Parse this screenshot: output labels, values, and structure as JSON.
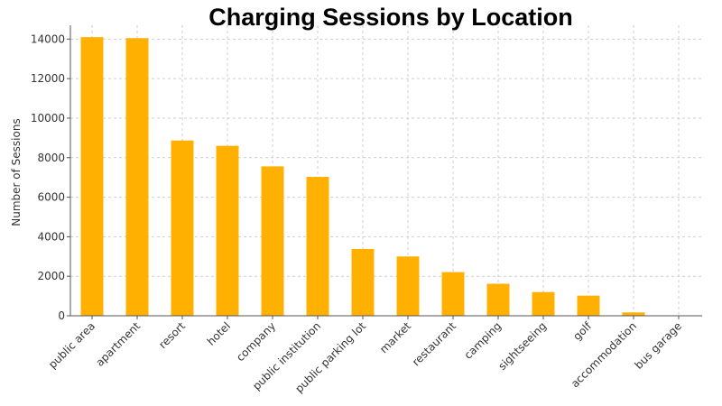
{
  "chart_data": {
    "type": "bar",
    "title": "Charging Sessions by Location",
    "xlabel": "",
    "ylabel": "Number of Sessions",
    "categories": [
      "public area",
      "apartment",
      "resort",
      "hotel",
      "company",
      "public institution",
      "public parking lot",
      "market",
      "restaurant",
      "camping",
      "sightseeing",
      "golf",
      "accommodation",
      "bus garage"
    ],
    "values": [
      14100,
      14050,
      8870,
      8600,
      7560,
      7030,
      3380,
      3000,
      2210,
      1620,
      1200,
      1020,
      170,
      10
    ],
    "ylim": [
      0,
      14700
    ],
    "yticks": [
      0,
      2000,
      4000,
      6000,
      8000,
      10000,
      12000,
      14000
    ],
    "grid": true,
    "bar_color": "#FFB000"
  }
}
